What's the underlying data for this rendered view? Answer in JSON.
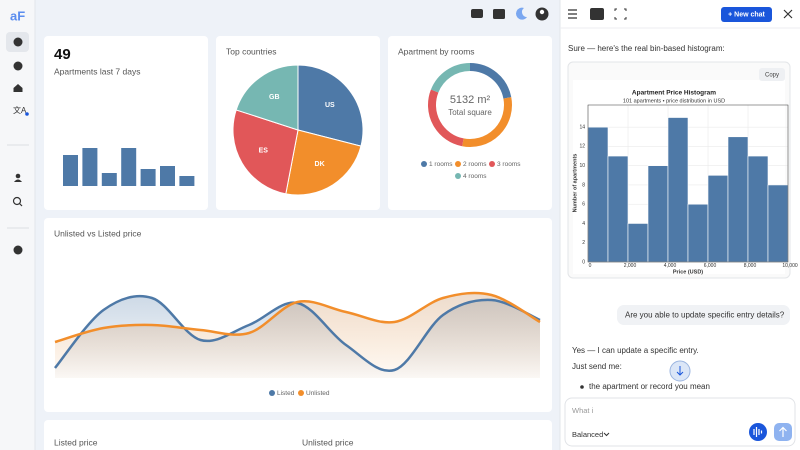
{
  "app": {
    "logo": "aF"
  },
  "dashboard": {
    "bottom_titles": [
      "Listed price",
      "Unlisted price"
    ]
  },
  "chat": {
    "new_chat": "+ New chat",
    "intro": "Sure — here's the real bin-based histogram:",
    "copy": "Copy",
    "user_message": "Are you able to update specific entry details?",
    "reply_lines": [
      "Yes — I can update a specific entry.",
      "Just send me:"
    ],
    "reply_bullets": [
      "the apartment or record you mean"
    ],
    "input_text": "What i",
    "mode": "Balanced"
  },
  "chart_data": [
    {
      "type": "bar",
      "headline": 49,
      "subtitle": "Apartments last 7 days",
      "values": [
        31,
        38,
        13,
        38,
        17,
        20,
        10
      ],
      "color": "#4e79a7"
    },
    {
      "type": "pie",
      "title": "Top countries",
      "categories": [
        "US",
        "DK",
        "ES",
        "GB"
      ],
      "values": [
        29,
        24,
        27,
        20
      ],
      "colors": [
        "#4e79a7",
        "#f28e2b",
        "#e15759",
        "#76b7b2"
      ]
    },
    {
      "type": "donut",
      "title": "Apartment by rooms",
      "center_label": "5132 m²",
      "center_sublabel": "Total square",
      "categories": [
        "1 rooms",
        "2 rooms",
        "3 rooms",
        "4 rooms"
      ],
      "values": [
        22,
        31,
        28,
        19
      ],
      "colors": [
        "#4e79a7",
        "#f28e2b",
        "#e15759",
        "#76b7b2"
      ]
    },
    {
      "type": "line",
      "title": "Unlisted vs Listed price",
      "series": [
        {
          "name": "Listed",
          "color": "#4e79a7",
          "values": [
            32,
            90,
            102,
            60,
            75,
            97,
            55,
            30,
            85,
            100,
            80
          ]
        },
        {
          "name": "Unlisted",
          "color": "#f28e2b",
          "values": [
            58,
            72,
            75,
            70,
            67,
            98,
            88,
            78,
            102,
            105,
            78
          ]
        }
      ]
    },
    {
      "type": "histogram",
      "title": "Apartment Price Histogram",
      "subtitle": "101 apartments • price distribution in USD",
      "xlabel": "Price (USD)",
      "ylabel": "Number of apartments",
      "bins": [
        0,
        1000,
        2000,
        3000,
        4000,
        5000,
        6000,
        7000,
        8000,
        9000,
        10000
      ],
      "values": [
        14,
        11,
        4,
        10,
        15,
        6,
        9,
        13,
        11,
        8
      ],
      "color": "#4e79a7",
      "xlim": [
        0,
        10000
      ],
      "xticks": [
        0,
        {
          "value": 2000,
          "label": "2,000"
        },
        {
          "value": 4000,
          "label": "4,000"
        },
        {
          "value": 6000,
          "label": "6,000"
        },
        {
          "value": 8000,
          "label": "8,000"
        },
        {
          "value": 10000,
          "label": "10,000"
        }
      ],
      "ylim": [
        0,
        16.3
      ],
      "yticks": [
        0,
        2,
        4,
        6,
        8,
        10,
        12,
        14
      ],
      "grid": true
    }
  ]
}
